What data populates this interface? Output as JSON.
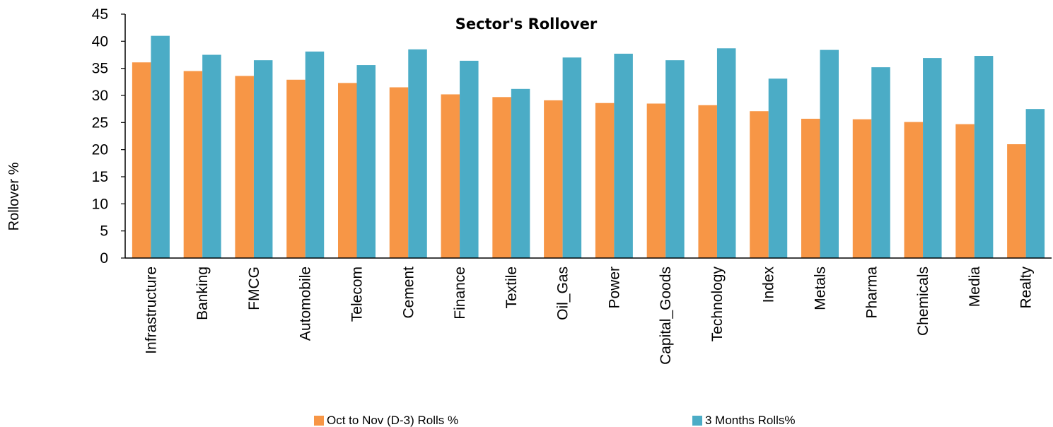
{
  "chart_data": {
    "type": "bar",
    "title": "Sector's Rollover",
    "ylabel": "Rollover %",
    "xlabel": "",
    "ylim": [
      0,
      45
    ],
    "yticks": [
      0,
      5,
      10,
      15,
      20,
      25,
      30,
      35,
      40,
      45
    ],
    "grid": false,
    "legend": "bottom",
    "categories": [
      "Infrastructure",
      "Banking",
      "FMCG",
      "Automobile",
      "Telecom",
      "Cement",
      "Finance",
      "Textile",
      "Oil_Gas",
      "Power",
      "Capital_Goods",
      "Technology",
      "Index",
      "Metals",
      "Pharma",
      "Chemicals",
      "Media",
      "Realty"
    ],
    "series": [
      {
        "name": "Oct to Nov (D-3) Rolls %",
        "color": "#F79646",
        "values": [
          36.1,
          34.5,
          33.6,
          32.9,
          32.3,
          31.5,
          30.2,
          29.7,
          29.1,
          28.6,
          28.5,
          28.2,
          27.1,
          25.7,
          25.6,
          25.1,
          24.7,
          21.0
        ]
      },
      {
        "name": "3 Months Rolls%",
        "color": "#4BACC6",
        "values": [
          41.0,
          37.5,
          36.5,
          38.1,
          35.6,
          38.5,
          36.4,
          31.2,
          37.0,
          37.7,
          36.5,
          38.7,
          33.1,
          38.4,
          35.2,
          36.9,
          37.3,
          27.5
        ]
      }
    ]
  }
}
